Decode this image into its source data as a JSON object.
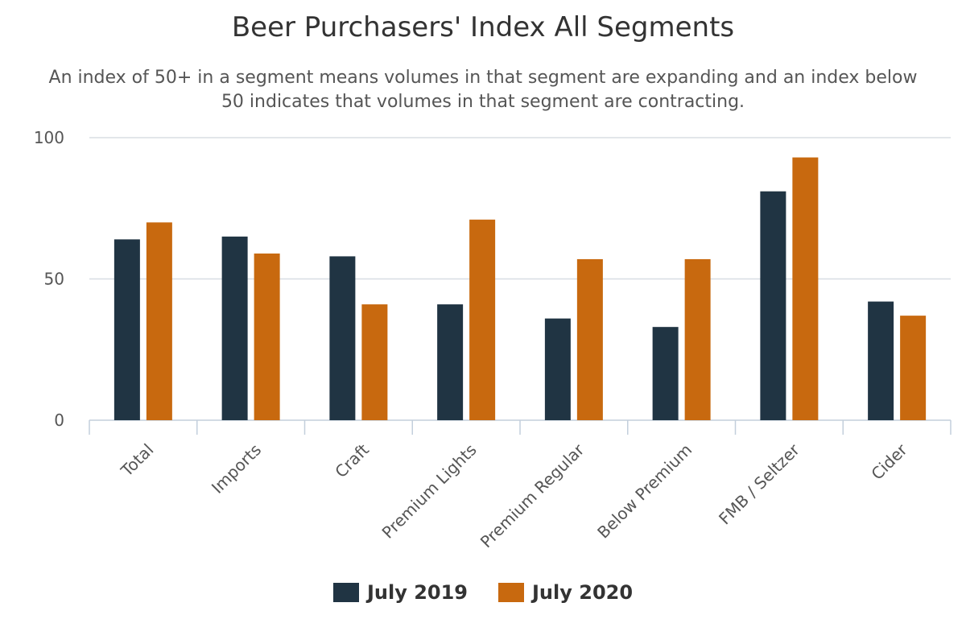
{
  "chart_data": {
    "type": "bar",
    "title": "Beer Purchasers' Index All Segments",
    "subtitle": "An index of 50+ in a segment means volumes in that segment are expanding and an index below 50 indicates that volumes in that segment are contracting.",
    "xlabel": "",
    "ylabel": "",
    "categories": [
      "Total",
      "Imports",
      "Craft",
      "Premium Lights",
      "Premium Regular",
      "Below Premium",
      "FMB / Seltzer",
      "Cider"
    ],
    "series": [
      {
        "name": "July 2019",
        "color": "#203443",
        "values": [
          64,
          65,
          58,
          41,
          36,
          33,
          81,
          42
        ]
      },
      {
        "name": "July 2020",
        "color": "#c8690f",
        "values": [
          70,
          59,
          41,
          71,
          57,
          57,
          93,
          37
        ]
      }
    ],
    "ylim": [
      0,
      100
    ],
    "yticks": [
      0,
      50,
      100
    ],
    "grid": true,
    "legend": "bottom-center"
  }
}
